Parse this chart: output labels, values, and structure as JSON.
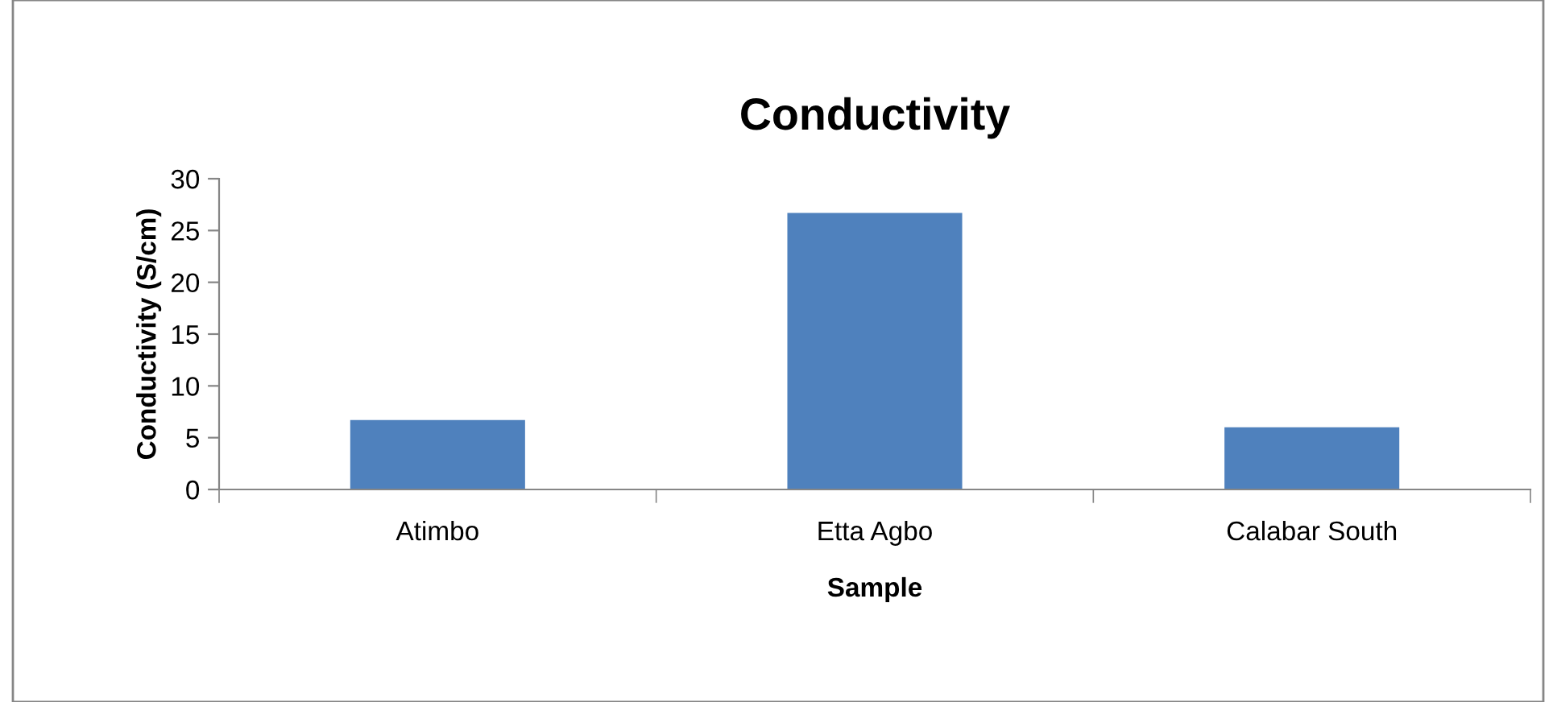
{
  "chart_data": {
    "type": "bar",
    "title": "Conductivity",
    "xlabel": "Sample",
    "ylabel": "Conductivity (S/cm)",
    "categories": [
      "Atimbo",
      "Etta Agbo",
      "Calabar South"
    ],
    "values": [
      6.7,
      26.7,
      6.0
    ],
    "color": "#4f81bd",
    "ylim": [
      0,
      30
    ],
    "yticks": [
      0,
      5,
      10,
      15,
      20,
      25,
      30
    ],
    "grid": false,
    "legend": false
  }
}
